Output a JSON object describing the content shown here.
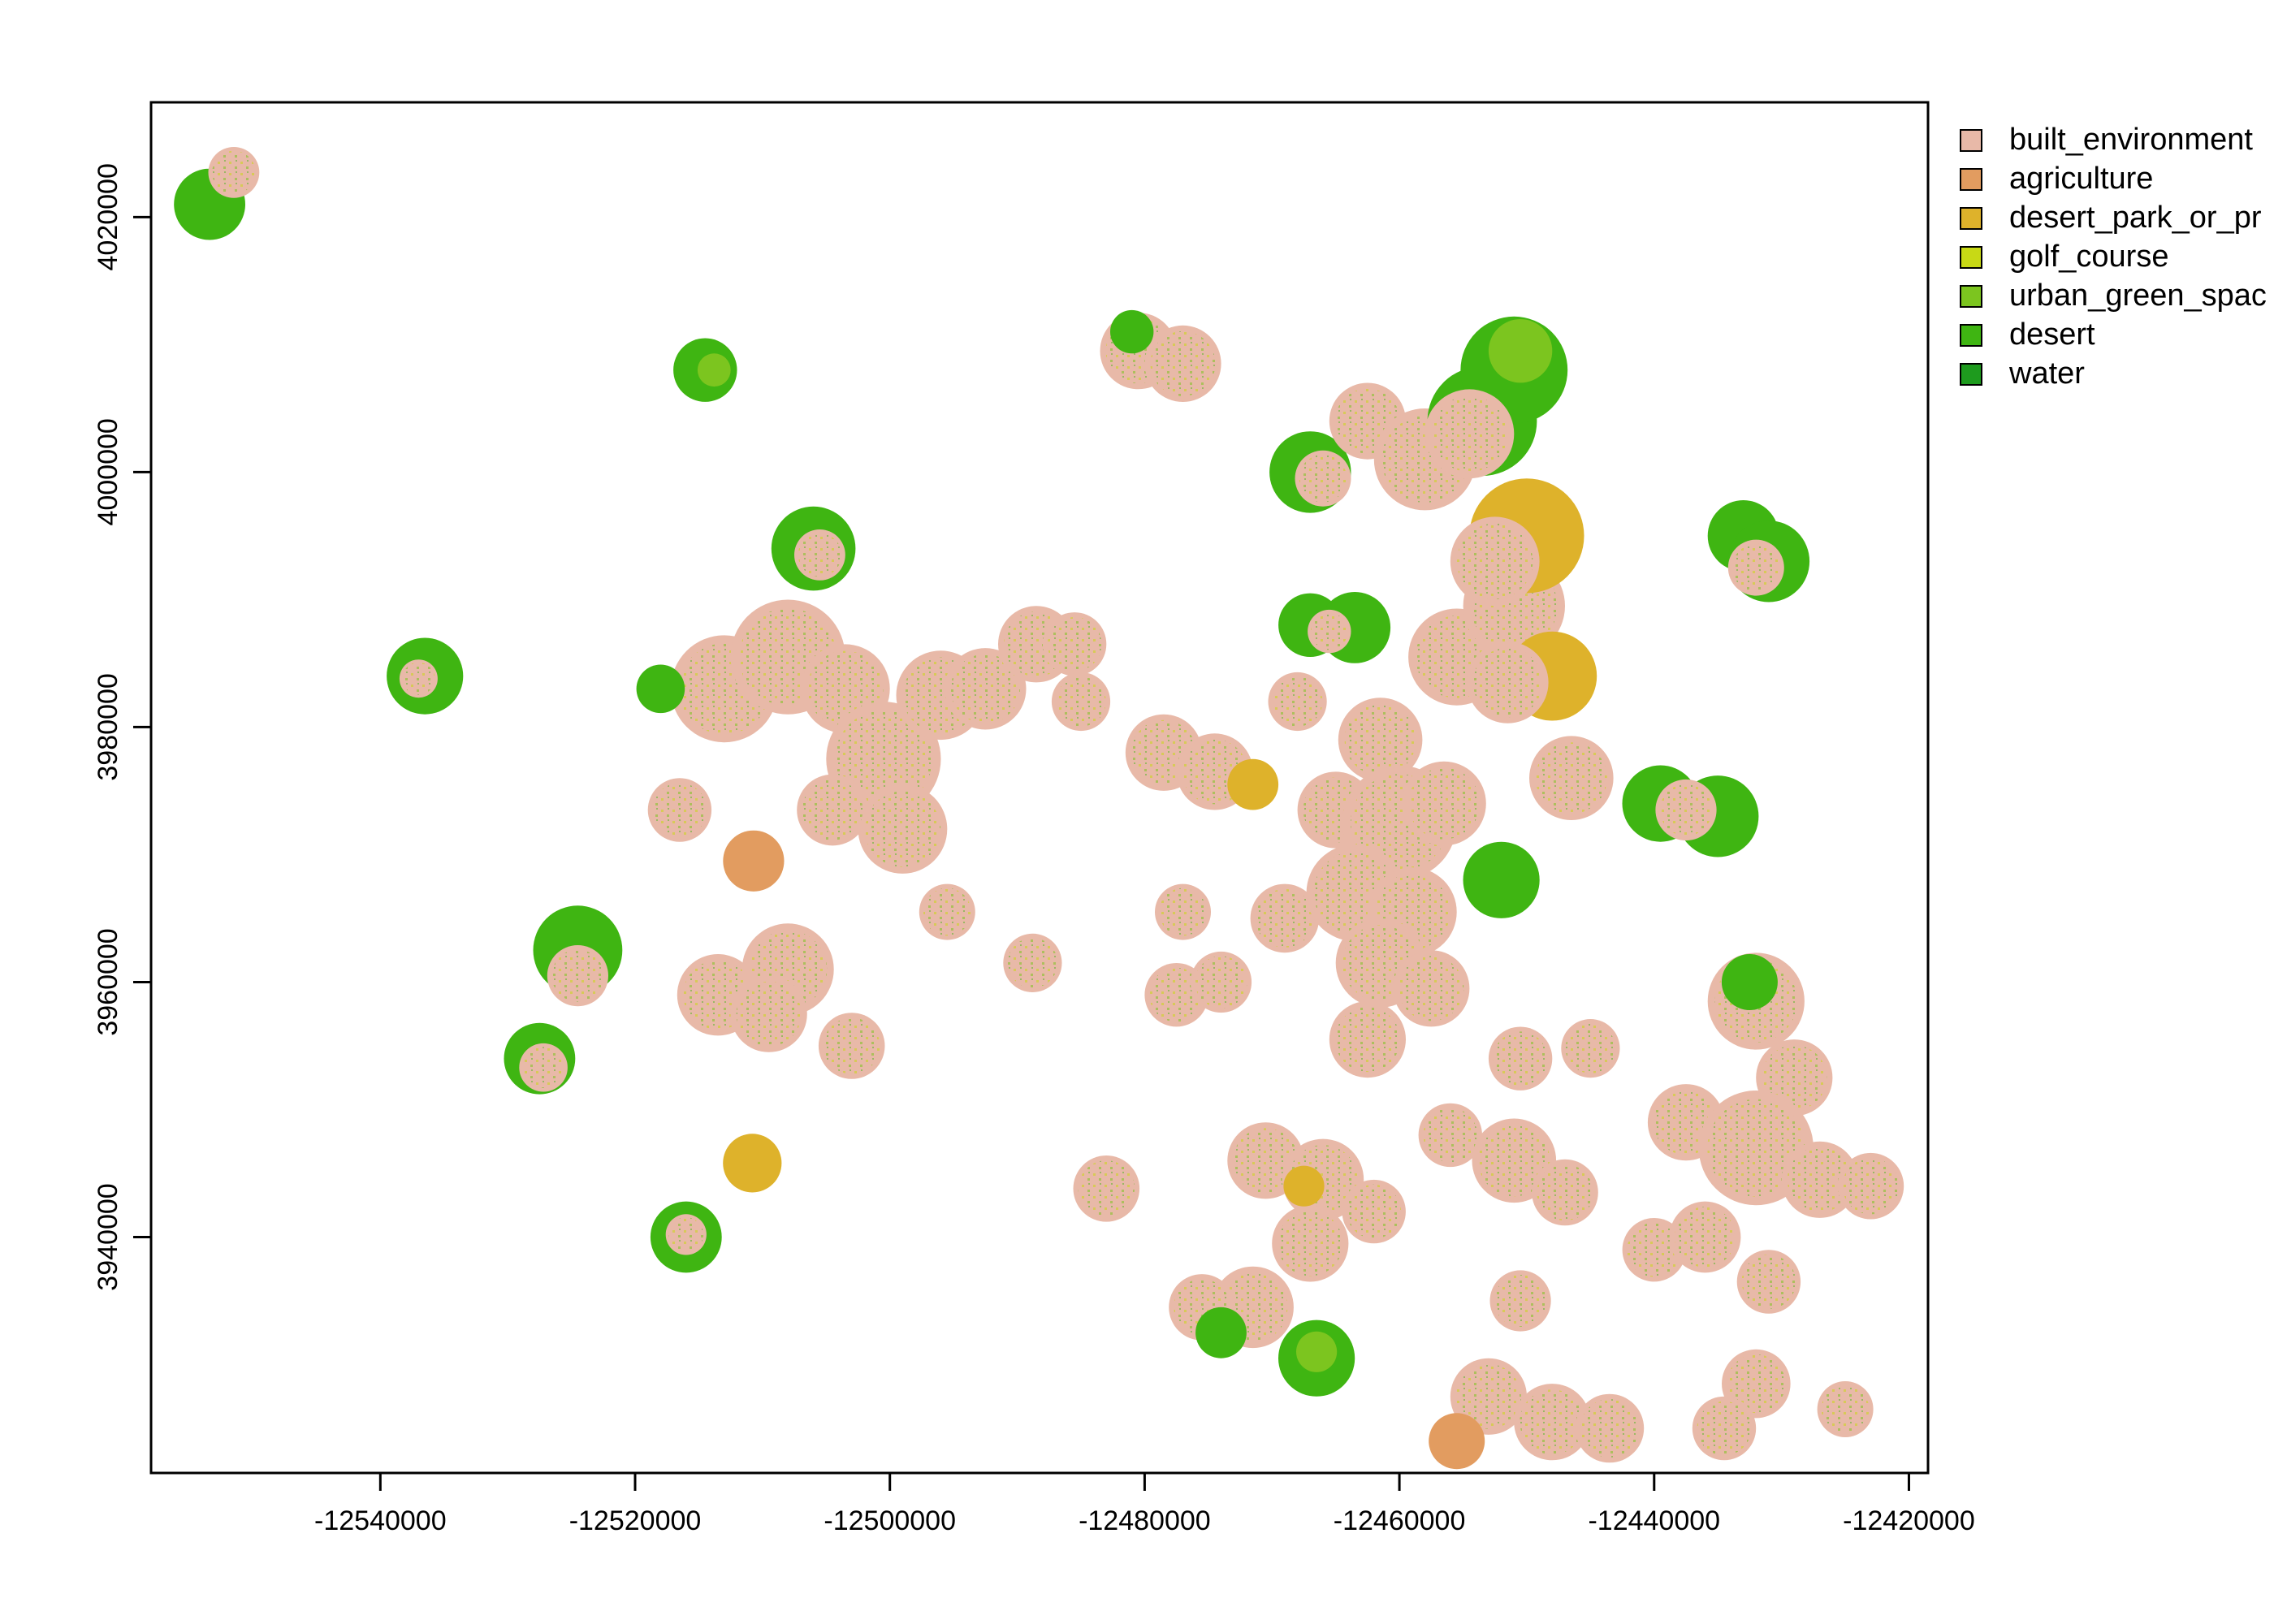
{
  "chart_data": {
    "type": "categorical raster map",
    "x_ticks": [
      "-12540000",
      "-12520000",
      "-12500000",
      "-12480000",
      "-12460000",
      "-12440000",
      "-12420000"
    ],
    "y_ticks": [
      "3940000",
      "3960000",
      "3980000",
      "4000000",
      "4020000"
    ],
    "x_range": [
      -12558000,
      -12418500
    ],
    "y_range": [
      3921500,
      4029000
    ],
    "legend": [
      {
        "label": "built_environment",
        "color": "#E8B9A8"
      },
      {
        "label": "agriculture",
        "color": "#E29C60"
      },
      {
        "label": "desert_park_or_pr",
        "color": "#DEB22B"
      },
      {
        "label": "golf_course",
        "color": "#C8D915"
      },
      {
        "label": "urban_green_spac",
        "color": "#7CC51F"
      },
      {
        "label": "desert",
        "color": "#3FB512"
      },
      {
        "label": "water",
        "color": "#1E9B1E"
      }
    ],
    "patches": [
      {
        "x": -12553400,
        "y": 4021000,
        "r": 2800,
        "class": "desert"
      },
      {
        "x": -12551500,
        "y": 4023500,
        "r": 2000,
        "class": "built_environment"
      },
      {
        "x": -12514500,
        "y": 4008000,
        "r": 2500,
        "class": "desert"
      },
      {
        "x": -12513800,
        "y": 4008000,
        "r": 1300,
        "class": "urban_green_spac"
      },
      {
        "x": -12536500,
        "y": 3984000,
        "r": 3000,
        "class": "desert"
      },
      {
        "x": -12537000,
        "y": 3983800,
        "r": 1500,
        "class": "built_environment"
      },
      {
        "x": -12506000,
        "y": 3994000,
        "r": 3300,
        "class": "desert"
      },
      {
        "x": -12505500,
        "y": 3993500,
        "r": 2000,
        "class": "built_environment"
      },
      {
        "x": -12513000,
        "y": 3983000,
        "r": 4200,
        "class": "built_environment"
      },
      {
        "x": -12508000,
        "y": 3985500,
        "r": 4500,
        "class": "built_environment"
      },
      {
        "x": -12503500,
        "y": 3983000,
        "r": 3500,
        "class": "built_environment"
      },
      {
        "x": -12500500,
        "y": 3977500,
        "r": 4500,
        "class": "built_environment"
      },
      {
        "x": -12499000,
        "y": 3972000,
        "r": 3500,
        "class": "built_environment"
      },
      {
        "x": -12496000,
        "y": 3982500,
        "r": 3500,
        "class": "built_environment"
      },
      {
        "x": -12492500,
        "y": 3983000,
        "r": 3200,
        "class": "built_environment"
      },
      {
        "x": -12488500,
        "y": 3986500,
        "r": 3000,
        "class": "built_environment"
      },
      {
        "x": -12485500,
        "y": 3986500,
        "r": 2500,
        "class": "built_environment"
      },
      {
        "x": -12485000,
        "y": 3982000,
        "r": 2300,
        "class": "built_environment"
      },
      {
        "x": -12518000,
        "y": 3983000,
        "r": 1900,
        "class": "desert"
      },
      {
        "x": -12516500,
        "y": 3973500,
        "r": 2500,
        "class": "built_environment"
      },
      {
        "x": -12510700,
        "y": 3969500,
        "r": 2400,
        "class": "agriculture"
      },
      {
        "x": -12504500,
        "y": 3973500,
        "r": 2800,
        "class": "built_environment"
      },
      {
        "x": -12495500,
        "y": 3965500,
        "r": 2200,
        "class": "built_environment"
      },
      {
        "x": -12488800,
        "y": 3961500,
        "r": 2300,
        "class": "built_environment"
      },
      {
        "x": -12524500,
        "y": 3962500,
        "r": 3500,
        "class": "desert"
      },
      {
        "x": -12524500,
        "y": 3960500,
        "r": 2400,
        "class": "built_environment"
      },
      {
        "x": -12527500,
        "y": 3954000,
        "r": 2800,
        "class": "desert"
      },
      {
        "x": -12527200,
        "y": 3953300,
        "r": 1900,
        "class": "built_environment"
      },
      {
        "x": -12513500,
        "y": 3959000,
        "r": 3200,
        "class": "built_environment"
      },
      {
        "x": -12508000,
        "y": 3961000,
        "r": 3600,
        "class": "built_environment"
      },
      {
        "x": -12509500,
        "y": 3957500,
        "r": 3000,
        "class": "built_environment"
      },
      {
        "x": -12503000,
        "y": 3955000,
        "r": 2600,
        "class": "built_environment"
      },
      {
        "x": -12510800,
        "y": 3945800,
        "r": 2300,
        "class": "desert_park_or_pr"
      },
      {
        "x": -12516000,
        "y": 3940000,
        "r": 2800,
        "class": "desert"
      },
      {
        "x": -12516000,
        "y": 3940200,
        "r": 1600,
        "class": "built_environment"
      },
      {
        "x": -12478500,
        "y": 3978000,
        "r": 3000,
        "class": "built_environment"
      },
      {
        "x": -12474500,
        "y": 3976500,
        "r": 3000,
        "class": "built_environment"
      },
      {
        "x": -12471500,
        "y": 3975500,
        "r": 2000,
        "class": "desert_park_or_pr"
      },
      {
        "x": -12468000,
        "y": 3982000,
        "r": 2300,
        "class": "built_environment"
      },
      {
        "x": -12477000,
        "y": 3965500,
        "r": 2200,
        "class": "built_environment"
      },
      {
        "x": -12469000,
        "y": 3965000,
        "r": 2700,
        "class": "built_environment"
      },
      {
        "x": -12477500,
        "y": 3959000,
        "r": 2500,
        "class": "built_environment"
      },
      {
        "x": -12474000,
        "y": 3960000,
        "r": 2400,
        "class": "built_environment"
      },
      {
        "x": -12483000,
        "y": 3943800,
        "r": 2600,
        "class": "built_environment"
      },
      {
        "x": -12467000,
        "y": 3988000,
        "r": 2500,
        "class": "desert"
      },
      {
        "x": -12463500,
        "y": 3987800,
        "r": 2800,
        "class": "desert"
      },
      {
        "x": -12465500,
        "y": 3987500,
        "r": 1700,
        "class": "built_environment"
      },
      {
        "x": -12461500,
        "y": 3979000,
        "r": 3300,
        "class": "built_environment"
      },
      {
        "x": -12465000,
        "y": 3973500,
        "r": 3000,
        "class": "built_environment"
      },
      {
        "x": -12460000,
        "y": 3972500,
        "r": 4500,
        "class": "built_environment"
      },
      {
        "x": -12456500,
        "y": 3974000,
        "r": 3300,
        "class": "built_environment"
      },
      {
        "x": -12463500,
        "y": 3967000,
        "r": 3800,
        "class": "built_environment"
      },
      {
        "x": -12459000,
        "y": 3965500,
        "r": 3500,
        "class": "built_environment"
      },
      {
        "x": -12452000,
        "y": 3968000,
        "r": 3000,
        "class": "desert"
      },
      {
        "x": -12461500,
        "y": 3961500,
        "r": 3500,
        "class": "built_environment"
      },
      {
        "x": -12457500,
        "y": 3959500,
        "r": 3000,
        "class": "built_environment"
      },
      {
        "x": -12462500,
        "y": 3955500,
        "r": 3000,
        "class": "built_environment"
      },
      {
        "x": -12455500,
        "y": 3985500,
        "r": 3800,
        "class": "built_environment"
      },
      {
        "x": -12451000,
        "y": 3989500,
        "r": 4000,
        "class": "built_environment"
      },
      {
        "x": -12448000,
        "y": 3984000,
        "r": 3500,
        "class": "desert_park_or_pr"
      },
      {
        "x": -12451500,
        "y": 3983500,
        "r": 3200,
        "class": "built_environment"
      },
      {
        "x": -12450000,
        "y": 3995000,
        "r": 4500,
        "class": "desert_park_or_pr"
      },
      {
        "x": -12452500,
        "y": 3993000,
        "r": 3500,
        "class": "built_environment"
      },
      {
        "x": -12446500,
        "y": 3976000,
        "r": 3300,
        "class": "built_environment"
      },
      {
        "x": -12467000,
        "y": 4000000,
        "r": 3200,
        "class": "desert"
      },
      {
        "x": -12466000,
        "y": 3999500,
        "r": 2200,
        "class": "built_environment"
      },
      {
        "x": -12462500,
        "y": 4004000,
        "r": 3000,
        "class": "built_environment"
      },
      {
        "x": -12458000,
        "y": 4001000,
        "r": 4000,
        "class": "built_environment"
      },
      {
        "x": -12453500,
        "y": 4004000,
        "r": 4300,
        "class": "desert"
      },
      {
        "x": -12451000,
        "y": 4008000,
        "r": 4200,
        "class": "desert"
      },
      {
        "x": -12454500,
        "y": 4003000,
        "r": 3500,
        "class": "built_environment"
      },
      {
        "x": -12450500,
        "y": 4009500,
        "r": 2500,
        "class": "urban_green_spac"
      },
      {
        "x": -12480500,
        "y": 4009500,
        "r": 3000,
        "class": "built_environment"
      },
      {
        "x": -12477000,
        "y": 4008500,
        "r": 3000,
        "class": "built_environment"
      },
      {
        "x": -12481000,
        "y": 4011000,
        "r": 1700,
        "class": "desert"
      },
      {
        "x": -12433000,
        "y": 3995000,
        "r": 2800,
        "class": "desert"
      },
      {
        "x": -12431000,
        "y": 3993000,
        "r": 3200,
        "class": "desert"
      },
      {
        "x": -12432000,
        "y": 3992500,
        "r": 2200,
        "class": "built_environment"
      },
      {
        "x": -12439500,
        "y": 3974000,
        "r": 3000,
        "class": "desert"
      },
      {
        "x": -12435000,
        "y": 3973000,
        "r": 3200,
        "class": "desert"
      },
      {
        "x": -12437500,
        "y": 3973500,
        "r": 2400,
        "class": "built_environment"
      },
      {
        "x": -12432000,
        "y": 3958500,
        "r": 3800,
        "class": "built_environment"
      },
      {
        "x": -12432500,
        "y": 3960000,
        "r": 2200,
        "class": "desert"
      },
      {
        "x": -12429000,
        "y": 3952500,
        "r": 3000,
        "class": "built_environment"
      },
      {
        "x": -12437500,
        "y": 3949000,
        "r": 3000,
        "class": "built_environment"
      },
      {
        "x": -12432000,
        "y": 3947000,
        "r": 4500,
        "class": "built_environment"
      },
      {
        "x": -12427000,
        "y": 3944500,
        "r": 3000,
        "class": "built_environment"
      },
      {
        "x": -12423000,
        "y": 3944000,
        "r": 2600,
        "class": "built_environment"
      },
      {
        "x": -12450500,
        "y": 3954000,
        "r": 2500,
        "class": "built_environment"
      },
      {
        "x": -12445000,
        "y": 3954800,
        "r": 2300,
        "class": "built_environment"
      },
      {
        "x": -12456000,
        "y": 3948000,
        "r": 2500,
        "class": "built_environment"
      },
      {
        "x": -12451000,
        "y": 3946000,
        "r": 3300,
        "class": "built_environment"
      },
      {
        "x": -12447000,
        "y": 3943500,
        "r": 2600,
        "class": "built_environment"
      },
      {
        "x": -12440000,
        "y": 3939000,
        "r": 2500,
        "class": "built_environment"
      },
      {
        "x": -12436000,
        "y": 3940000,
        "r": 2800,
        "class": "built_environment"
      },
      {
        "x": -12431000,
        "y": 3936500,
        "r": 2500,
        "class": "built_environment"
      },
      {
        "x": -12450500,
        "y": 3935000,
        "r": 2400,
        "class": "built_environment"
      },
      {
        "x": -12470500,
        "y": 3946000,
        "r": 3000,
        "class": "built_environment"
      },
      {
        "x": -12466000,
        "y": 3944500,
        "r": 3200,
        "class": "built_environment"
      },
      {
        "x": -12462000,
        "y": 3942000,
        "r": 2500,
        "class": "built_environment"
      },
      {
        "x": -12467000,
        "y": 3939500,
        "r": 3000,
        "class": "built_environment"
      },
      {
        "x": -12467500,
        "y": 3944000,
        "r": 1600,
        "class": "desert_park_or_pr"
      },
      {
        "x": -12471500,
        "y": 3934500,
        "r": 3200,
        "class": "built_environment"
      },
      {
        "x": -12475500,
        "y": 3934500,
        "r": 2600,
        "class": "built_environment"
      },
      {
        "x": -12474000,
        "y": 3932500,
        "r": 2000,
        "class": "desert"
      },
      {
        "x": -12466500,
        "y": 3930500,
        "r": 3000,
        "class": "desert"
      },
      {
        "x": -12466500,
        "y": 3931000,
        "r": 1600,
        "class": "urban_green_spac"
      },
      {
        "x": -12453000,
        "y": 3927500,
        "r": 3000,
        "class": "built_environment"
      },
      {
        "x": -12448000,
        "y": 3925500,
        "r": 3000,
        "class": "built_environment"
      },
      {
        "x": -12443500,
        "y": 3925000,
        "r": 2700,
        "class": "built_environment"
      },
      {
        "x": -12455500,
        "y": 3924000,
        "r": 2200,
        "class": "agriculture"
      },
      {
        "x": -12432000,
        "y": 3928500,
        "r": 2700,
        "class": "built_environment"
      },
      {
        "x": -12434500,
        "y": 3925000,
        "r": 2500,
        "class": "built_environment"
      },
      {
        "x": -12425000,
        "y": 3926500,
        "r": 2200,
        "class": "built_environment"
      }
    ]
  }
}
